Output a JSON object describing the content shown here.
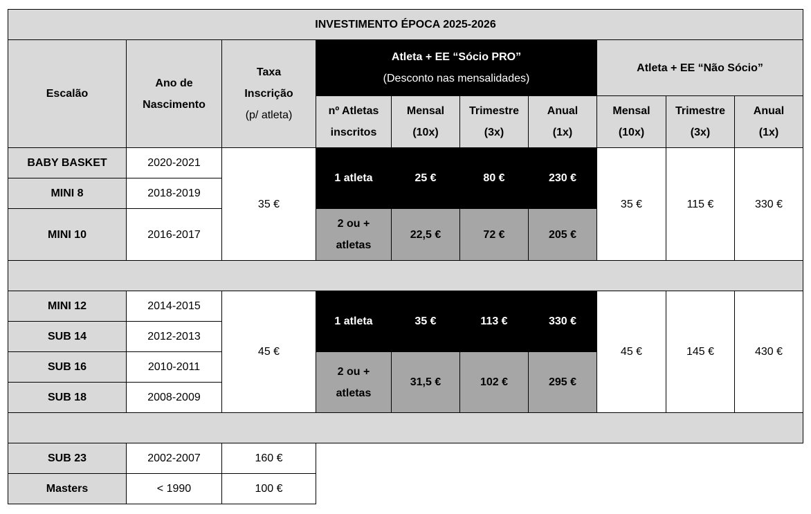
{
  "title": "INVESTIMENTO ÉPOCA 2025-2026",
  "header": {
    "escalao": "Escalão",
    "ano_line1": "Ano de",
    "ano_line2": "Nascimento",
    "taxa_line1": "Taxa",
    "taxa_line2": "Inscrição",
    "taxa_line3": "(p/ atleta)",
    "socio_pro_line1": "Atleta + EE “Sócio PRO”",
    "socio_pro_line2": "(Desconto nas mensalidades)",
    "nao_socio": "Atleta + EE “Não Sócio”",
    "n_atletas_line1": "nº Atletas",
    "n_atletas_line2": "inscritos",
    "mensal": "Mensal",
    "mensal_sub": "(10x)",
    "trimestre": "Trimestre",
    "trimestre_sub": "(3x)",
    "anual": "Anual",
    "anual_sub": "(1x)"
  },
  "group1": {
    "rows": [
      {
        "escalao": "BABY BASKET",
        "ano": "2020-2021"
      },
      {
        "escalao": "MINI 8",
        "ano": "2018-2019"
      },
      {
        "escalao": "MINI 10",
        "ano": "2016-2017"
      }
    ],
    "taxa": "35 €",
    "pro_one": {
      "label": "1 atleta",
      "mensal": "25 €",
      "trimestre": "80 €",
      "anual": "230 €"
    },
    "pro_two": {
      "label_line1": "2 ou +",
      "label_line2": "atletas",
      "mensal": "22,5 €",
      "trimestre": "72 €",
      "anual": "205 €"
    },
    "nao_socio": {
      "mensal": "35 €",
      "trimestre": "115 €",
      "anual": "330 €"
    }
  },
  "group2": {
    "rows": [
      {
        "escalao": "MINI 12",
        "ano": "2014-2015"
      },
      {
        "escalao": "SUB 14",
        "ano": "2012-2013"
      },
      {
        "escalao": "SUB 16",
        "ano": "2010-2011"
      },
      {
        "escalao": "SUB 18",
        "ano": "2008-2009"
      }
    ],
    "taxa": "45 €",
    "pro_one": {
      "label": "1 atleta",
      "mensal": "35 €",
      "trimestre": "113 €",
      "anual": "330 €"
    },
    "pro_two": {
      "label_line1": "2 ou +",
      "label_line2": "atletas",
      "mensal": "31,5 €",
      "trimestre": "102 €",
      "anual": "295 €"
    },
    "nao_socio": {
      "mensal": "45 €",
      "trimestre": "145 €",
      "anual": "430 €"
    }
  },
  "group3": {
    "rows": [
      {
        "escalao": "SUB 23",
        "ano": "2002-2007",
        "taxa": "160 €"
      },
      {
        "escalao": "Masters",
        "ano": "< 1990",
        "taxa": "100 €"
      }
    ]
  }
}
